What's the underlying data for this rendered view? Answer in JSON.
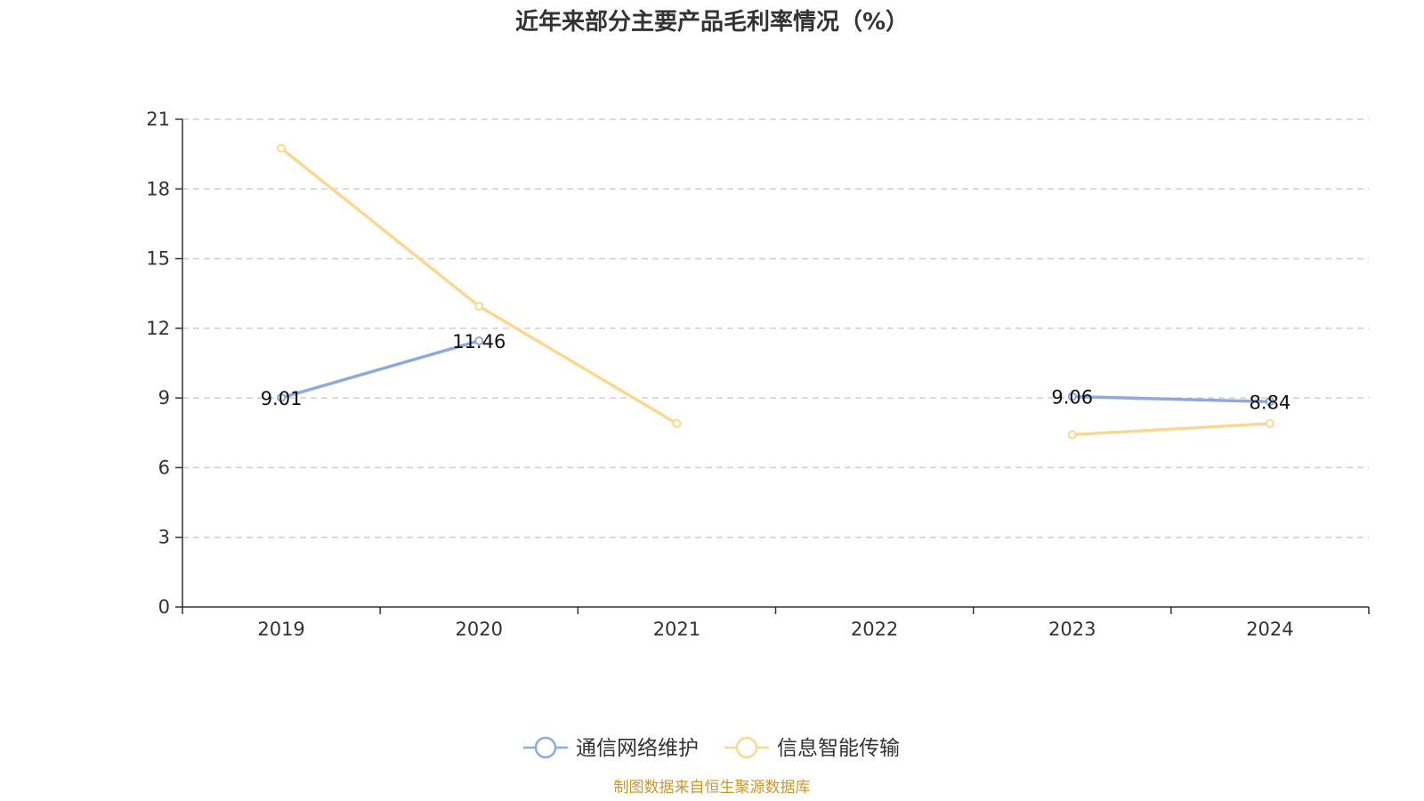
{
  "chart_data": {
    "type": "line",
    "title": "近年来部分主要产品毛利率情况（%）",
    "categories": [
      "2019",
      "2020",
      "2021",
      "2022",
      "2023",
      "2024"
    ],
    "ylim": [
      0,
      21
    ],
    "yticks": [
      0,
      3,
      6,
      9,
      12,
      15,
      18,
      21
    ],
    "grid": true,
    "legend_position": "bottom-center",
    "series": [
      {
        "name": "通信网络维护",
        "color": "#8eaad8",
        "values": [
          9.01,
          11.46,
          null,
          null,
          9.06,
          8.84
        ],
        "labels": [
          "9.01",
          "11.46",
          "",
          "",
          "9.06",
          "8.84"
        ]
      },
      {
        "name": "信息智能传输",
        "color": "#fad894",
        "values": [
          19.75,
          12.95,
          7.9,
          null,
          7.42,
          7.9
        ],
        "labels": [
          "",
          "",
          "",
          "",
          "",
          ""
        ]
      }
    ],
    "source": "制图数据来自恒生聚源数据库",
    "source_color": "#c8972e"
  }
}
